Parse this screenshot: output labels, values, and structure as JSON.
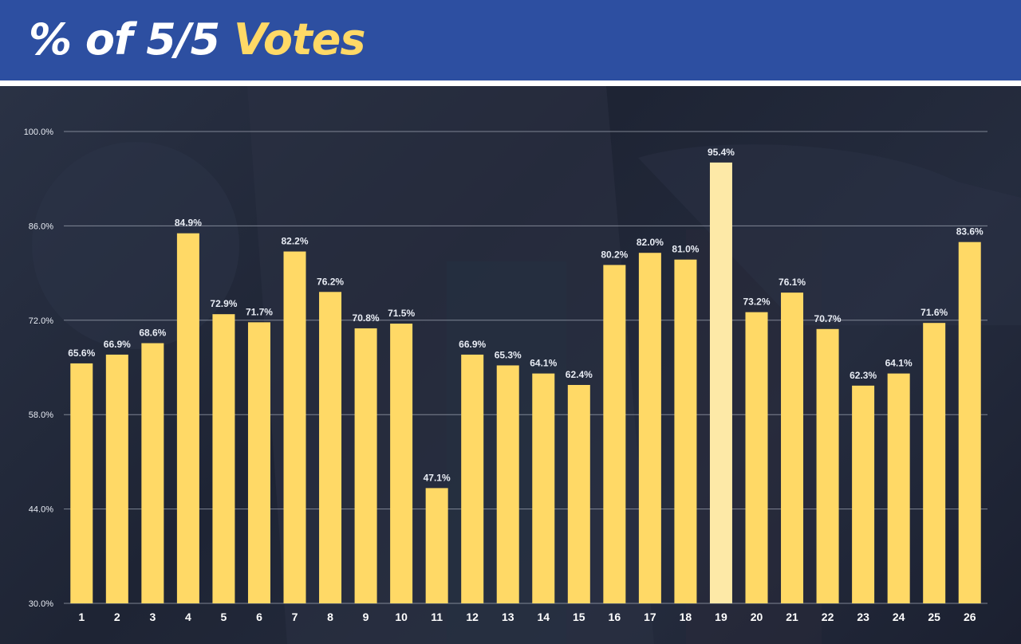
{
  "header": {
    "title_main": "% of 5/5",
    "title_accent": "Votes"
  },
  "colors": {
    "header_bg": "#2d4fa1",
    "bar": "#ffd966",
    "bar_highlight": "#fde9a7",
    "accent": "#ffd966"
  },
  "chart_data": {
    "type": "bar",
    "title": "% of 5/5 Votes",
    "xlabel": "",
    "ylabel": "",
    "categories": [
      "1",
      "2",
      "3",
      "4",
      "5",
      "6",
      "7",
      "8",
      "9",
      "10",
      "11",
      "12",
      "13",
      "14",
      "15",
      "16",
      "17",
      "18",
      "19",
      "20",
      "21",
      "22",
      "23",
      "24",
      "25",
      "26"
    ],
    "values": [
      65.6,
      66.9,
      68.6,
      84.9,
      72.9,
      71.7,
      82.2,
      76.2,
      70.8,
      71.5,
      47.1,
      66.9,
      65.3,
      64.1,
      62.4,
      80.2,
      82.0,
      81.0,
      95.4,
      73.2,
      76.1,
      70.7,
      62.3,
      64.1,
      71.6,
      83.6
    ],
    "value_labels": [
      "65.6%",
      "66.9%",
      "68.6%",
      "84.9%",
      "72.9%",
      "71.7%",
      "82.2%",
      "76.2%",
      "70.8%",
      "71.5%",
      "47.1%",
      "66.9%",
      "65.3%",
      "64.1%",
      "62.4%",
      "80.2%",
      "82.0%",
      "81.0%",
      "95.4%",
      "73.2%",
      "76.1%",
      "70.7%",
      "62.3%",
      "64.1%",
      "71.6%",
      "83.6%"
    ],
    "highlight_index": 18,
    "ylim": [
      30,
      100
    ],
    "yticks": [
      30,
      44,
      58,
      72,
      86,
      100
    ],
    "ytick_labels": [
      "30.0%",
      "44.0%",
      "58.0%",
      "72.0%",
      "86.0%",
      "100.0%"
    ],
    "grid": true,
    "legend": "none"
  }
}
